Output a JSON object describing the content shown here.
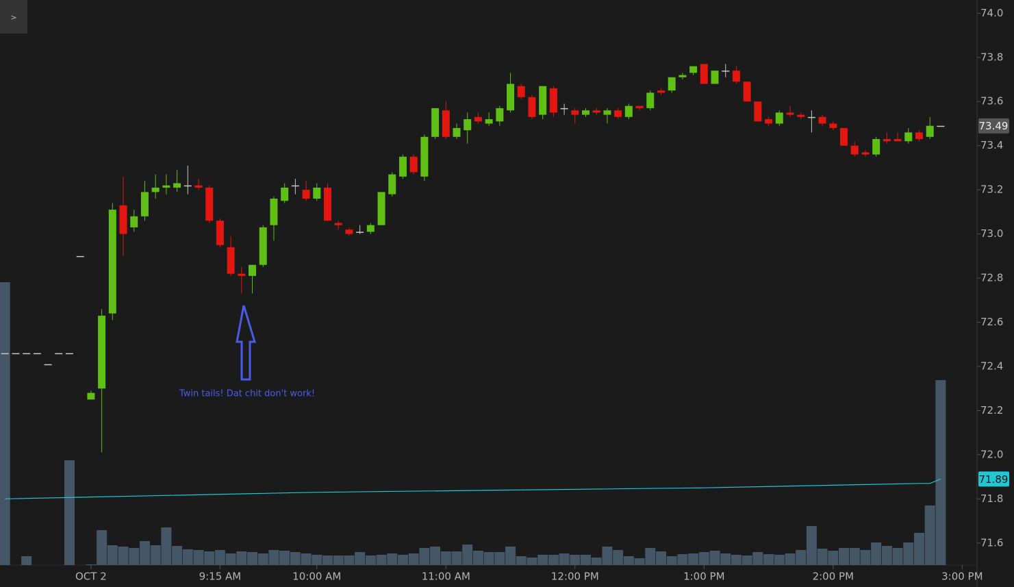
{
  "expand_button": ">",
  "chart_data": {
    "type": "candlestick",
    "x": [
      455,
      460,
      465,
      470,
      475,
      480,
      485,
      490,
      495,
      500,
      505,
      510,
      515,
      520,
      525,
      530,
      535,
      540,
      545,
      550,
      555,
      560,
      565,
      570,
      575,
      580,
      585,
      590,
      595,
      600,
      605,
      610,
      615,
      620,
      625,
      630,
      635,
      640,
      645,
      650,
      655,
      660,
      665,
      670,
      675,
      680,
      685,
      690,
      695,
      700,
      705,
      710,
      715,
      720,
      725,
      730,
      735,
      740,
      745,
      750,
      755,
      760,
      765,
      770,
      775,
      780,
      785,
      790,
      795,
      800,
      805,
      810,
      815,
      820,
      825,
      830,
      835,
      840,
      845,
      850,
      855,
      860,
      865,
      870,
      875,
      880,
      885,
      890
    ],
    "open": [
      72.46,
      72.46,
      72.46,
      72.46,
      72.41,
      72.46,
      72.46,
      72.9,
      72.25,
      72.3,
      72.64,
      73.13,
      73.03,
      73.08,
      73.19,
      73.21,
      73.21,
      73.22,
      73.22,
      73.21,
      73.06,
      72.94,
      72.82,
      72.81,
      72.86,
      73.04,
      73.15,
      73.22,
      73.2,
      73.16,
      73.21,
      73.05,
      73.02,
      73.01,
      73.01,
      73.04,
      73.18,
      73.26,
      73.35,
      73.26,
      73.44,
      73.56,
      73.44,
      73.47,
      73.53,
      73.5,
      73.51,
      73.56,
      73.67,
      73.62,
      73.54,
      73.66,
      73.57,
      73.56,
      73.54,
      73.56,
      73.54,
      73.56,
      73.53,
      73.58,
      73.57,
      73.65,
      73.65,
      73.71,
      73.73,
      73.77,
      73.68,
      73.74,
      73.74,
      73.69,
      73.6,
      73.52,
      73.5,
      73.55,
      73.54,
      73.53,
      73.53,
      73.5,
      73.48,
      73.4,
      73.37,
      73.36,
      73.43,
      73.43,
      73.42,
      73.46,
      73.44,
      73.49
    ],
    "high": [
      72.46,
      72.46,
      72.46,
      72.46,
      72.41,
      72.46,
      72.46,
      72.9,
      72.29,
      72.66,
      73.14,
      73.26,
      73.11,
      73.24,
      73.27,
      73.27,
      73.29,
      73.31,
      73.25,
      73.22,
      73.07,
      72.99,
      72.85,
      72.86,
      73.04,
      73.17,
      73.23,
      73.25,
      73.24,
      73.23,
      73.23,
      73.06,
      73.03,
      73.04,
      73.05,
      73.19,
      73.28,
      73.36,
      73.36,
      73.45,
      73.57,
      73.6,
      73.5,
      73.55,
      73.55,
      73.55,
      73.58,
      73.73,
      73.68,
      73.63,
      73.67,
      73.67,
      73.59,
      73.57,
      73.57,
      73.57,
      73.57,
      73.57,
      73.59,
      73.58,
      73.65,
      73.66,
      73.71,
      73.73,
      73.76,
      73.77,
      73.74,
      73.77,
      73.76,
      73.69,
      73.6,
      73.53,
      73.56,
      73.58,
      73.55,
      73.56,
      73.54,
      73.51,
      73.48,
      73.42,
      73.38,
      73.44,
      73.46,
      73.46,
      73.48,
      73.47,
      73.53,
      73.49
    ],
    "low": [
      72.46,
      72.46,
      72.46,
      72.46,
      72.41,
      72.46,
      72.46,
      72.9,
      72.25,
      72.01,
      72.61,
      72.9,
      73.01,
      73.06,
      73.16,
      73.18,
      73.19,
      73.18,
      73.2,
      73.05,
      72.94,
      72.81,
      72.73,
      72.73,
      72.85,
      72.97,
      73.14,
      73.18,
      73.15,
      73.15,
      73.06,
      73.02,
      72.99,
      73.0,
      73.0,
      73.04,
      73.17,
      73.25,
      73.27,
      73.24,
      73.43,
      73.43,
      73.43,
      73.41,
      73.5,
      73.49,
      73.49,
      73.55,
      73.61,
      73.52,
      73.52,
      73.53,
      73.54,
      73.5,
      73.53,
      73.54,
      73.5,
      73.52,
      73.52,
      73.56,
      73.56,
      73.63,
      73.64,
      73.7,
      73.72,
      73.68,
      73.68,
      73.71,
      73.68,
      73.6,
      73.51,
      73.49,
      73.49,
      73.53,
      73.52,
      73.46,
      73.49,
      73.47,
      73.4,
      73.35,
      73.35,
      73.35,
      73.41,
      73.42,
      73.41,
      73.42,
      73.43,
      73.49
    ],
    "close": [
      72.46,
      72.46,
      72.46,
      72.46,
      72.41,
      72.46,
      72.46,
      72.9,
      72.28,
      72.63,
      73.11,
      73.0,
      73.08,
      73.19,
      73.21,
      73.22,
      73.23,
      73.22,
      73.21,
      73.06,
      72.95,
      72.82,
      72.81,
      72.86,
      73.03,
      73.16,
      73.21,
      73.22,
      73.16,
      73.21,
      73.06,
      73.04,
      73.0,
      73.01,
      73.04,
      73.19,
      73.27,
      73.35,
      73.28,
      73.44,
      73.57,
      73.44,
      73.48,
      73.52,
      73.51,
      73.52,
      73.57,
      73.68,
      73.62,
      73.53,
      73.67,
      73.55,
      73.57,
      73.54,
      73.56,
      73.55,
      73.56,
      73.53,
      73.58,
      73.57,
      73.64,
      73.64,
      73.71,
      73.72,
      73.76,
      73.68,
      73.74,
      73.74,
      73.69,
      73.6,
      73.51,
      73.5,
      73.55,
      73.54,
      73.53,
      73.53,
      73.5,
      73.48,
      73.4,
      73.36,
      73.36,
      73.43,
      73.42,
      73.42,
      73.46,
      73.43,
      73.49,
      73.49
    ],
    "up_color": "#5fbf14",
    "down_color": "#e3170f",
    "doji_color": "#c8c8c8",
    "volume": {
      "color": "#4c6273",
      "ylim": [
        0,
        825
      ],
      "values": [
        413,
        0,
        13,
        0,
        0,
        0,
        153,
        0,
        1,
        51,
        29,
        27,
        25,
        35,
        29,
        55,
        28,
        23,
        22,
        20,
        22,
        17,
        20,
        19,
        17,
        22,
        21,
        19,
        17,
        15,
        14,
        14,
        14,
        19,
        14,
        15,
        17,
        15,
        17,
        25,
        27,
        20,
        20,
        30,
        21,
        19,
        19,
        27,
        13,
        11,
        15,
        15,
        17,
        15,
        15,
        11,
        27,
        22,
        13,
        10,
        25,
        20,
        13,
        16,
        17,
        19,
        21,
        17,
        15,
        14,
        19,
        16,
        15,
        17,
        22,
        57,
        24,
        21,
        25,
        25,
        22,
        33,
        28,
        25,
        33,
        47,
        87,
        270
      ]
    },
    "ma": {
      "color": "#1ec8d4",
      "x": [
        455,
        600,
        780,
        880,
        885,
        890
      ],
      "values": [
        71.8,
        71.83,
        71.85,
        71.87,
        71.87,
        71.89
      ]
    },
    "xlim": [
      452.7,
      906.9
    ],
    "xticks": [
      {
        "value": 495,
        "label": "OCT 2"
      },
      {
        "value": 555,
        "label": "9:15 AM"
      },
      {
        "value": 600,
        "label": "10:00 AM"
      },
      {
        "value": 660,
        "label": "11:00 AM"
      },
      {
        "value": 720,
        "label": "12:00 PM"
      },
      {
        "value": 780,
        "label": "1:00 PM"
      },
      {
        "value": 840,
        "label": "2:00 PM"
      },
      {
        "value": 900,
        "label": "3:00 PM"
      }
    ],
    "ylim": [
      71.5,
      74.06
    ],
    "yticks": [
      71.6,
      71.8,
      {
        "value": 72.0,
        "label": "72.0"
      },
      72.2,
      72.4,
      72.6,
      72.8,
      {
        "value": 73.0,
        "label": "73.0"
      },
      73.2,
      73.4,
      73.6,
      73.8,
      {
        "value": 74.0,
        "label": "74.0"
      }
    ],
    "annotation": {
      "text": "Twin tails! Dat chit don't work!",
      "color": "#4a5ce6"
    }
  }
}
